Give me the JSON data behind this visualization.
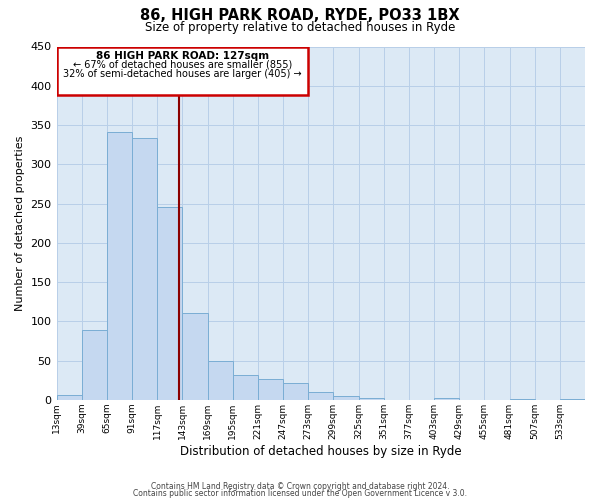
{
  "title": "86, HIGH PARK ROAD, RYDE, PO33 1BX",
  "subtitle": "Size of property relative to detached houses in Ryde",
  "xlabel": "Distribution of detached houses by size in Ryde",
  "ylabel": "Number of detached properties",
  "bar_labels": [
    "13sqm",
    "39sqm",
    "65sqm",
    "91sqm",
    "117sqm",
    "143sqm",
    "169sqm",
    "195sqm",
    "221sqm",
    "247sqm",
    "273sqm",
    "299sqm",
    "325sqm",
    "351sqm",
    "377sqm",
    "403sqm",
    "429sqm",
    "455sqm",
    "481sqm",
    "507sqm",
    "533sqm"
  ],
  "bar_values": [
    6,
    89,
    341,
    333,
    246,
    110,
    49,
    32,
    26,
    21,
    10,
    5,
    2,
    0,
    0,
    2,
    0,
    0,
    1,
    0,
    1
  ],
  "bar_color": "#c5d8f0",
  "bar_edgecolor": "#7aadd4",
  "vline_color": "#8b0000",
  "annotation_title": "86 HIGH PARK ROAD: 127sqm",
  "annotation_line1": "← 67% of detached houses are smaller (855)",
  "annotation_line2": "32% of semi-detached houses are larger (405) →",
  "annotation_box_edgecolor": "#cc0000",
  "ylim": [
    0,
    450
  ],
  "yticks": [
    0,
    50,
    100,
    150,
    200,
    250,
    300,
    350,
    400,
    450
  ],
  "footnote1": "Contains HM Land Registry data © Crown copyright and database right 2024.",
  "footnote2": "Contains public sector information licensed under the Open Government Licence v 3.0.",
  "bin_width": 26,
  "num_bins": 21,
  "x_bin_edges": [
    0,
    26,
    52,
    78,
    104,
    130,
    156,
    182,
    208,
    234,
    260,
    286,
    312,
    338,
    364,
    390,
    416,
    442,
    468,
    494,
    520,
    546
  ],
  "vline_x": 127,
  "bg_color": "#dce9f5",
  "grid_color": "#b8cfe8"
}
